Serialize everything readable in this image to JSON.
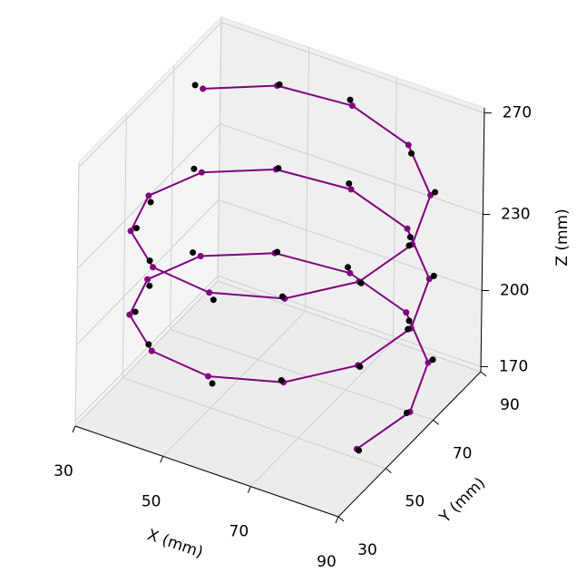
{
  "chart_data": {
    "type": "line3d",
    "xlabel": "X (mm)",
    "ylabel": "Y (mm)",
    "zlabel": "Z (mm)",
    "xlim": [
      30,
      90
    ],
    "ylim": [
      30,
      90
    ],
    "zlim": [
      168,
      272
    ],
    "xticks": [
      30,
      50,
      70,
      90
    ],
    "yticks": [
      30,
      50,
      70,
      90
    ],
    "zticks": [
      170,
      200,
      230,
      270
    ],
    "grid": true,
    "series": [
      {
        "color": "#800080",
        "line": true,
        "marker": true,
        "x": [
          86,
          90,
          86,
          75,
          60,
          45,
          34,
          30,
          34,
          45,
          60,
          75,
          86,
          90,
          86,
          75,
          60,
          45,
          34,
          30,
          34,
          45,
          60,
          75,
          86,
          90,
          86,
          75,
          60,
          45,
          34
        ],
        "y": [
          45,
          60,
          75,
          86,
          90,
          86,
          75,
          60,
          45,
          34,
          30,
          34,
          45,
          60,
          75,
          86,
          90,
          86,
          75,
          60,
          45,
          34,
          30,
          34,
          45,
          60,
          75,
          86,
          90,
          86,
          75
        ],
        "z": [
          178,
          180.75,
          183.5,
          186.25,
          189,
          191.75,
          194.5,
          197.25,
          200,
          202.75,
          205.5,
          208.25,
          211,
          213.75,
          216.5,
          219.25,
          222,
          224.75,
          227.5,
          230.25,
          233,
          235.75,
          238.5,
          241.25,
          244,
          246.75,
          249.5,
          252.25,
          255,
          257.75,
          260.5
        ]
      },
      {
        "color": "#000000",
        "line": false,
        "marker": true,
        "x": [
          87,
          89,
          86.5,
          76.5,
          59.5,
          45,
          32.5,
          31,
          34.5,
          44,
          61.5,
          74.5,
          87,
          89,
          86.5,
          76.5,
          59.5,
          45,
          32.5,
          31,
          34.5,
          44,
          61.5,
          74.5,
          87,
          89,
          86.5,
          76.5,
          59.5,
          45,
          32.5
        ],
        "y": [
          44,
          60.5,
          76,
          84.5,
          90,
          87,
          74.5,
          59,
          46.5,
          34.5,
          29,
          34,
          44,
          60.5,
          76,
          84.5,
          90,
          87,
          74.5,
          59,
          46.5,
          34.5,
          29,
          34,
          44,
          60.5,
          76,
          84.5,
          90,
          87,
          74.5
        ],
        "z": [
          179,
          179.25,
          184,
          185.25,
          191,
          191.25,
          195.5,
          196.25,
          200,
          204.25,
          204.5,
          208.75,
          212,
          212.25,
          217,
          218.25,
          224,
          224.25,
          228.5,
          229.25,
          233,
          237.25,
          237.5,
          241.75,
          245,
          245.25,
          250,
          251.25,
          257,
          257.25,
          261.5
        ]
      }
    ]
  }
}
